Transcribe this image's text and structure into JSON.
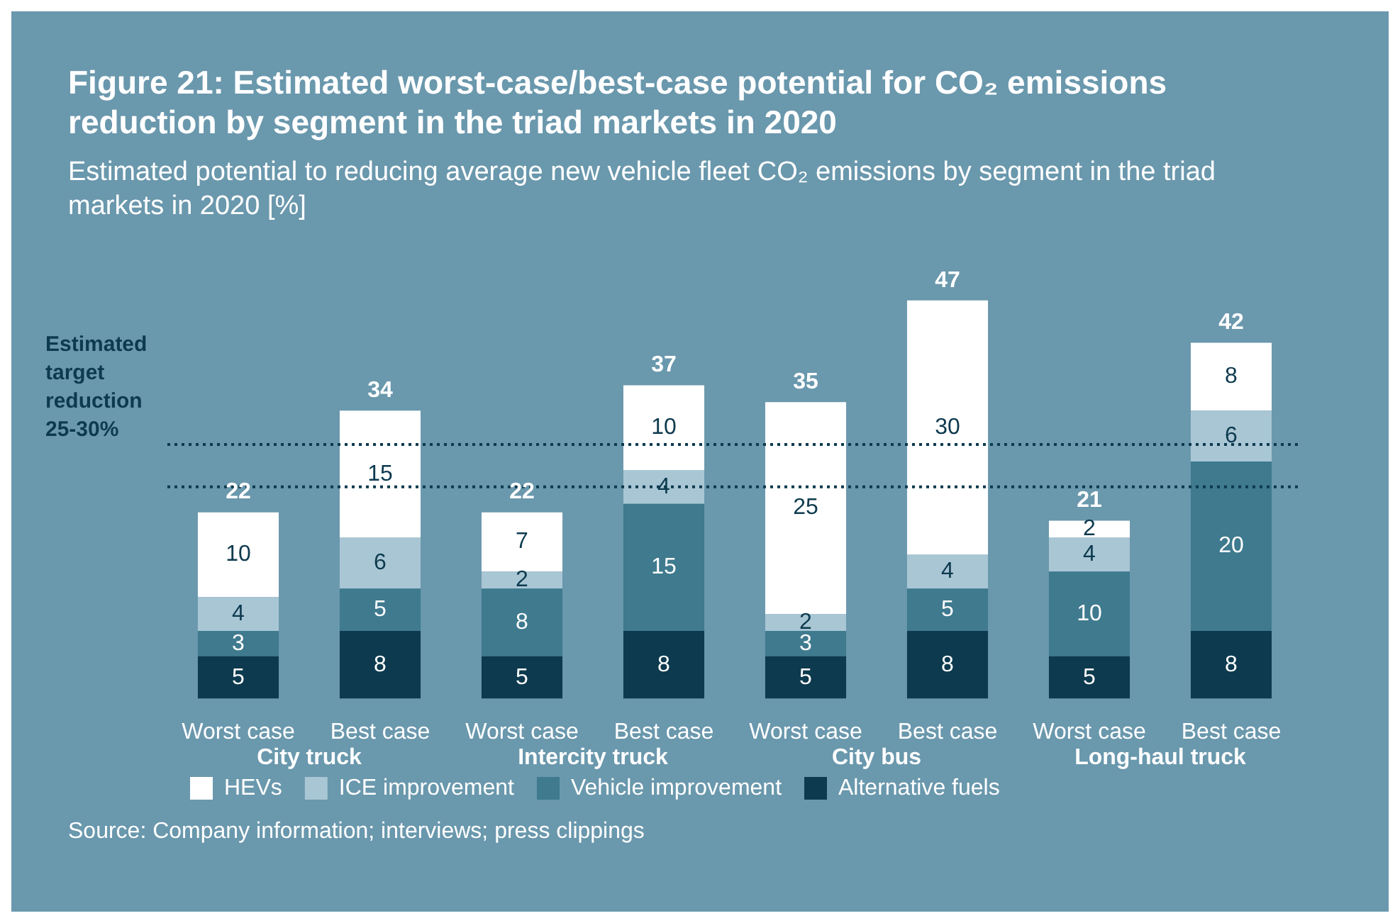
{
  "chart_data": {
    "type": "bar",
    "title": "Figure 21: Estimated worst-case/best-case potential for CO₂ emissions reduction by segment in the triad markets in 2020",
    "subtitle": "Estimated potential to reducing average new vehicle fleet CO₂ emissions by segment in the triad markets in 2020 [%]",
    "categories": [
      "Worst case",
      "Best case",
      "Worst case",
      "Best case",
      "Worst case",
      "Best case",
      "Worst case",
      "Best case"
    ],
    "stacked": true,
    "series": [
      {
        "name": "Alternative fuels",
        "color": "#0d3a4e",
        "values": [
          5,
          8,
          5,
          8,
          5,
          8,
          5,
          8
        ]
      },
      {
        "name": "Vehicle improvement",
        "color": "#3f7a8f",
        "values": [
          3,
          5,
          8,
          15,
          3,
          5,
          10,
          20
        ]
      },
      {
        "name": "ICE improvement",
        "color": "#a9c6d4",
        "values": [
          4,
          6,
          2,
          4,
          2,
          4,
          4,
          6
        ]
      },
      {
        "name": "HEVs",
        "color": "#ffffff",
        "values": [
          10,
          15,
          7,
          10,
          25,
          30,
          2,
          8
        ]
      }
    ],
    "totals": [
      "22",
      "34",
      "22",
      "37",
      "35",
      "47",
      "21",
      "42"
    ],
    "data_labels": true,
    "ref_lines": [
      {
        "axis": "y",
        "value": 30,
        "label": "Estimated target reduction 25-30%",
        "line_style": "dotted",
        "color": "#0d3a4e"
      },
      {
        "axis": "y",
        "value": 25,
        "label": null,
        "line_style": "dotted",
        "color": "#0d3a4e"
      }
    ],
    "annotations": [
      "City truck",
      "Intercity truck",
      "City bus",
      "Long-haul truck",
      "Source: Company information; interviews; press clippings"
    ],
    "grid": false,
    "tick_labels": "x",
    "legend": "bottom left"
  }
}
